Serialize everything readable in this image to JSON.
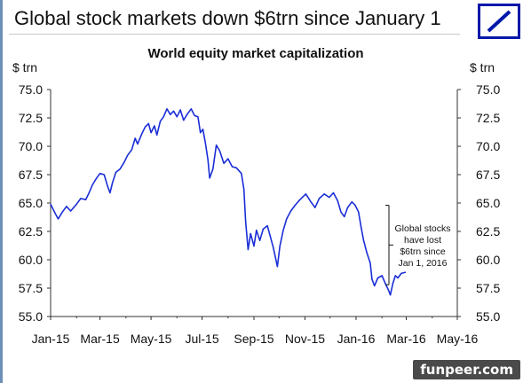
{
  "slide": {
    "title": "Global stock markets down $6trn since January 1",
    "watermark": "funpeer.com",
    "logo_color": "#0018a8"
  },
  "chart_data": {
    "type": "line",
    "title": "World equity market capitalization",
    "ylabel_left": "$ trn",
    "ylabel_right": "$ trn",
    "ylim": [
      55.0,
      75.0
    ],
    "yticks": [
      "55.0",
      "57.5",
      "60.0",
      "62.5",
      "65.0",
      "67.5",
      "70.0",
      "72.5",
      "75.0"
    ],
    "xlim": [
      "2015-01-01",
      "2016-05-01"
    ],
    "xticks": [
      "Jan-15",
      "Mar-15",
      "May-15",
      "Jul-15",
      "Sep-15",
      "Nov-15",
      "Jan-16",
      "Mar-16",
      "May-16"
    ],
    "annotation": [
      "Global stocks",
      "have lost",
      "$6trn since",
      "Jan 1, 2016"
    ],
    "line_color": "#1a2ed6",
    "grid": false,
    "series": [
      {
        "points": [
          [
            "2015-01-01",
            64.9
          ],
          [
            "2015-01-07",
            64.0
          ],
          [
            "2015-01-10",
            63.6
          ],
          [
            "2015-01-15",
            64.2
          ],
          [
            "2015-01-20",
            64.7
          ],
          [
            "2015-01-25",
            64.3
          ],
          [
            "2015-02-01",
            64.9
          ],
          [
            "2015-02-06",
            65.4
          ],
          [
            "2015-02-12",
            65.3
          ],
          [
            "2015-02-16",
            65.9
          ],
          [
            "2015-02-20",
            66.6
          ],
          [
            "2015-02-25",
            67.2
          ],
          [
            "2015-03-01",
            67.6
          ],
          [
            "2015-03-06",
            67.5
          ],
          [
            "2015-03-10",
            66.5
          ],
          [
            "2015-03-13",
            65.9
          ],
          [
            "2015-03-16",
            66.8
          ],
          [
            "2015-03-20",
            67.7
          ],
          [
            "2015-03-25",
            68.0
          ],
          [
            "2015-03-30",
            68.6
          ],
          [
            "2015-04-03",
            69.2
          ],
          [
            "2015-04-08",
            69.7
          ],
          [
            "2015-04-12",
            70.7
          ],
          [
            "2015-04-15",
            70.2
          ],
          [
            "2015-04-20",
            71.1
          ],
          [
            "2015-04-24",
            71.7
          ],
          [
            "2015-04-28",
            72.0
          ],
          [
            "2015-05-01",
            71.2
          ],
          [
            "2015-05-05",
            71.8
          ],
          [
            "2015-05-08",
            71.0
          ],
          [
            "2015-05-12",
            72.2
          ],
          [
            "2015-05-16",
            72.6
          ],
          [
            "2015-05-20",
            73.3
          ],
          [
            "2015-05-24",
            72.8
          ],
          [
            "2015-05-28",
            73.1
          ],
          [
            "2015-06-01",
            72.6
          ],
          [
            "2015-06-05",
            73.2
          ],
          [
            "2015-06-09",
            72.3
          ],
          [
            "2015-06-13",
            72.8
          ],
          [
            "2015-06-18",
            73.3
          ],
          [
            "2015-06-22",
            72.7
          ],
          [
            "2015-06-26",
            72.6
          ],
          [
            "2015-06-29",
            71.2
          ],
          [
            "2015-07-02",
            71.5
          ],
          [
            "2015-07-05",
            70.3
          ],
          [
            "2015-07-08",
            68.8
          ],
          [
            "2015-07-10",
            67.2
          ],
          [
            "2015-07-14",
            68.0
          ],
          [
            "2015-07-18",
            70.1
          ],
          [
            "2015-07-22",
            69.6
          ],
          [
            "2015-07-27",
            68.5
          ],
          [
            "2015-08-01",
            68.9
          ],
          [
            "2015-08-06",
            68.2
          ],
          [
            "2015-08-11",
            68.1
          ],
          [
            "2015-08-17",
            67.6
          ],
          [
            "2015-08-20",
            66.2
          ],
          [
            "2015-08-22",
            63.4
          ],
          [
            "2015-08-25",
            60.9
          ],
          [
            "2015-08-28",
            62.3
          ],
          [
            "2015-09-01",
            61.2
          ],
          [
            "2015-09-04",
            62.6
          ],
          [
            "2015-09-08",
            61.7
          ],
          [
            "2015-09-12",
            62.7
          ],
          [
            "2015-09-17",
            63.0
          ],
          [
            "2015-09-20",
            62.2
          ],
          [
            "2015-09-24",
            61.1
          ],
          [
            "2015-09-29",
            59.4
          ],
          [
            "2015-10-02",
            61.2
          ],
          [
            "2015-10-06",
            62.6
          ],
          [
            "2015-10-10",
            63.6
          ],
          [
            "2015-10-15",
            64.3
          ],
          [
            "2015-10-20",
            64.8
          ],
          [
            "2015-10-26",
            65.3
          ],
          [
            "2015-11-02",
            65.8
          ],
          [
            "2015-11-08",
            65.1
          ],
          [
            "2015-11-13",
            64.6
          ],
          [
            "2015-11-18",
            65.4
          ],
          [
            "2015-11-24",
            65.8
          ],
          [
            "2015-11-30",
            65.5
          ],
          [
            "2015-12-05",
            65.9
          ],
          [
            "2015-12-10",
            65.2
          ],
          [
            "2015-12-14",
            64.2
          ],
          [
            "2015-12-18",
            63.8
          ],
          [
            "2015-12-22",
            64.6
          ],
          [
            "2015-12-27",
            65.1
          ],
          [
            "2015-12-31",
            64.8
          ],
          [
            "2016-01-04",
            64.2
          ],
          [
            "2016-01-07",
            62.9
          ],
          [
            "2016-01-10",
            61.7
          ],
          [
            "2016-01-14",
            60.6
          ],
          [
            "2016-01-18",
            59.7
          ],
          [
            "2016-01-20",
            58.3
          ],
          [
            "2016-01-23",
            57.7
          ],
          [
            "2016-01-27",
            58.4
          ],
          [
            "2016-02-01",
            58.6
          ],
          [
            "2016-02-05",
            57.9
          ],
          [
            "2016-02-09",
            57.3
          ],
          [
            "2016-02-11",
            56.9
          ],
          [
            "2016-02-14",
            57.9
          ],
          [
            "2016-02-17",
            58.6
          ],
          [
            "2016-02-20",
            58.4
          ],
          [
            "2016-02-24",
            58.8
          ],
          [
            "2016-02-29",
            58.9
          ]
        ]
      }
    ]
  }
}
